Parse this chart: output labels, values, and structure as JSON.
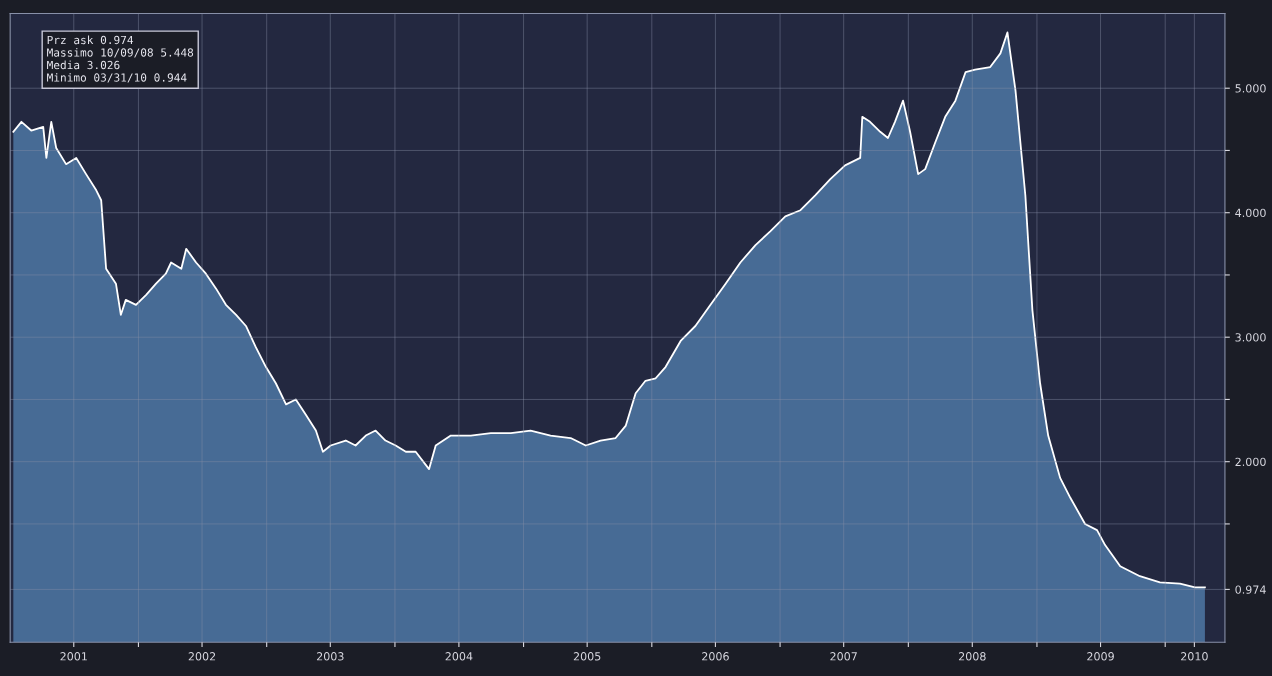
{
  "chart_data": {
    "type": "area",
    "x": [
      "2001-01-10",
      "2001-02-02",
      "2001-03-02",
      "2001-04-05",
      "2001-04-14",
      "2001-04-28",
      "2001-05-12",
      "2001-06-09",
      "2001-07-08",
      "2001-08-05",
      "2001-09-03",
      "2001-09-17",
      "2001-10-01",
      "2001-10-29",
      "2001-11-12",
      "2001-11-26",
      "2001-12-25",
      "2002-01-23",
      "2002-02-20",
      "2002-03-20",
      "2002-04-04",
      "2002-05-03",
      "2002-05-17",
      "2002-06-14",
      "2002-07-12",
      "2002-08-10",
      "2002-09-07",
      "2002-10-06",
      "2002-11-03",
      "2002-12-01",
      "2002-12-30",
      "2003-01-27",
      "2003-02-25",
      "2003-03-25",
      "2003-04-22",
      "2003-05-21",
      "2003-06-10",
      "2003-07-02",
      "2003-08-14",
      "2003-09-11",
      "2003-10-10",
      "2003-11-07",
      "2003-12-05",
      "2004-01-03",
      "2004-02-01",
      "2004-02-29",
      "2004-04-07",
      "2004-04-26",
      "2004-06-08",
      "2004-08-04",
      "2004-09-30",
      "2004-11-26",
      "2005-01-21",
      "2005-03-19",
      "2005-05-15",
      "2005-06-27",
      "2005-08-08",
      "2005-09-20",
      "2005-10-19",
      "2005-11-16",
      "2005-12-14",
      "2006-01-12",
      "2006-02-09",
      "2006-03-24",
      "2006-05-05",
      "2006-06-17",
      "2006-07-30",
      "2006-09-10",
      "2006-10-23",
      "2006-12-04",
      "2007-01-16",
      "2007-02-28",
      "2007-04-11",
      "2007-05-24",
      "2007-07-05",
      "2007-08-17",
      "2007-08-23",
      "2007-09-14",
      "2007-10-13",
      "2007-11-04",
      "2007-11-24",
      "2007-12-17",
      "2008-01-06",
      "2008-01-29",
      "2008-02-18",
      "2008-03-17",
      "2008-04-15",
      "2008-05-14",
      "2008-06-12",
      "2008-07-09",
      "2008-08-21",
      "2008-09-19",
      "2008-10-09",
      "2008-11-01",
      "2008-11-29",
      "2008-12-19",
      "2009-01-10",
      "2009-02-02",
      "2009-03-08",
      "2009-04-06",
      "2009-05-18",
      "2009-06-21",
      "2009-07-14",
      "2009-08-26",
      "2009-10-21",
      "2009-12-17",
      "2010-02-12",
      "2010-03-27",
      "2010-04-24"
    ],
    "series": [
      {
        "color": "#4a6f9a",
        "values": [
          4.65,
          4.73,
          4.66,
          4.69,
          4.44,
          4.73,
          4.52,
          4.39,
          4.44,
          4.31,
          4.18,
          4.1,
          3.55,
          3.43,
          3.18,
          3.3,
          3.26,
          3.34,
          3.43,
          3.51,
          3.6,
          3.55,
          3.71,
          3.6,
          3.51,
          3.39,
          3.26,
          3.18,
          3.09,
          2.92,
          2.76,
          2.63,
          2.46,
          2.5,
          2.38,
          2.25,
          2.08,
          2.13,
          2.17,
          2.13,
          2.21,
          2.25,
          2.17,
          2.13,
          2.08,
          2.08,
          1.94,
          2.13,
          2.21,
          2.21,
          2.23,
          2.23,
          2.25,
          2.21,
          2.19,
          2.13,
          2.17,
          2.19,
          2.29,
          2.55,
          2.65,
          2.67,
          2.76,
          2.97,
          3.09,
          3.26,
          3.43,
          3.6,
          3.74,
          3.85,
          3.97,
          4.02,
          4.14,
          4.27,
          4.38,
          4.44,
          4.77,
          4.73,
          4.65,
          4.6,
          4.73,
          4.9,
          4.65,
          4.31,
          4.35,
          4.56,
          4.77,
          4.9,
          5.13,
          5.15,
          5.17,
          5.28,
          5.448,
          4.98,
          4.14,
          3.22,
          2.63,
          2.21,
          1.87,
          1.71,
          1.5,
          1.45,
          1.33,
          1.16,
          1.08,
          1.03,
          1.02,
          0.99,
          0.99
        ]
      }
    ],
    "xlim": [
      "2001-01-01",
      "2010-06-20"
    ],
    "xticks": [
      {
        "value": "2001-07-01",
        "label": "2001"
      },
      {
        "value": "2002-01-01",
        "label": null
      },
      {
        "value": "2002-07-01",
        "label": "2002"
      },
      {
        "value": "2003-01-01",
        "label": null
      },
      {
        "value": "2003-07-01",
        "label": "2003"
      },
      {
        "value": "2004-01-01",
        "label": null
      },
      {
        "value": "2004-07-01",
        "label": "2004"
      },
      {
        "value": "2005-01-01",
        "label": null
      },
      {
        "value": "2005-07-01",
        "label": "2005"
      },
      {
        "value": "2006-01-01",
        "label": null
      },
      {
        "value": "2006-07-01",
        "label": "2006"
      },
      {
        "value": "2007-01-01",
        "label": null
      },
      {
        "value": "2007-07-01",
        "label": "2007"
      },
      {
        "value": "2008-01-01",
        "label": null
      },
      {
        "value": "2008-07-01",
        "label": "2008"
      },
      {
        "value": "2009-01-01",
        "label": null
      },
      {
        "value": "2009-07-01",
        "label": "2009"
      },
      {
        "value": "2010-01-01",
        "label": null
      },
      {
        "value": "2010-03-25",
        "label": "2010"
      }
    ],
    "ylim": [
      0.55,
      5.6
    ],
    "yticks": [
      {
        "value": 0.974,
        "label": "0.974"
      },
      {
        "value": 1.5,
        "label": null
      },
      {
        "value": 2,
        "label": "2.000"
      },
      {
        "value": 2.5,
        "label": null
      },
      {
        "value": 3,
        "label": "3.000"
      },
      {
        "value": 3.5,
        "label": null
      },
      {
        "value": 4,
        "label": "4.000"
      },
      {
        "value": 4.5,
        "label": null
      },
      {
        "value": 5,
        "label": "5.000"
      }
    ],
    "annotations": [
      "Prz ask 0.974",
      "Massimo 10/09/08 5.448",
      "Media 3.026",
      "Minimo 03/31/10 0.944"
    ],
    "grid": true
  }
}
